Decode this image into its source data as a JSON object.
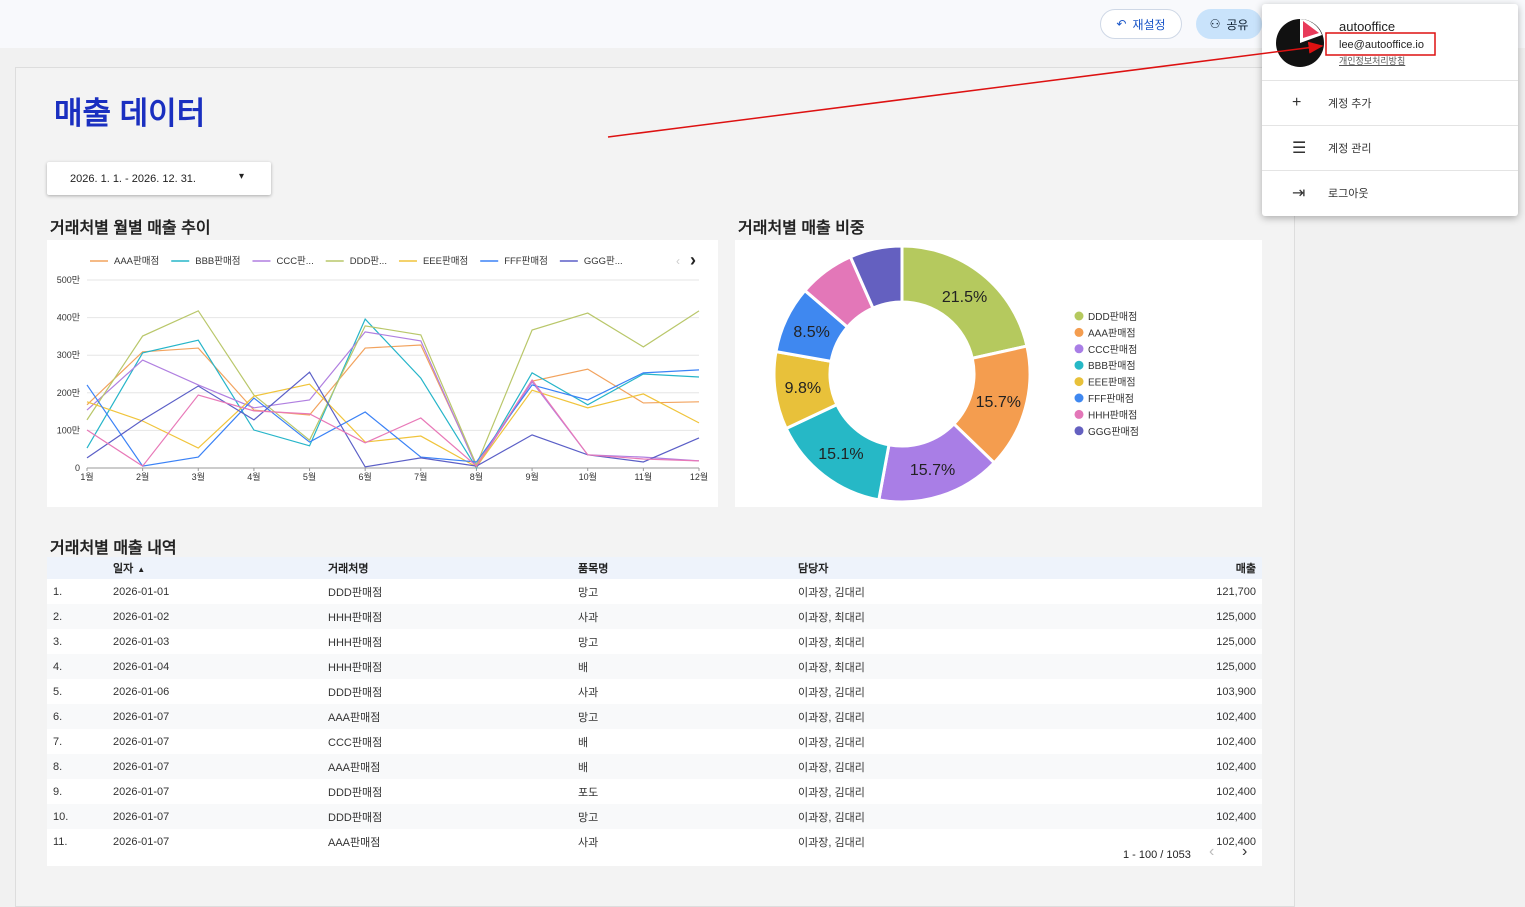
{
  "toolbar": {
    "reset": "재설정",
    "share": "공유"
  },
  "account_menu": {
    "name": "autooffice",
    "email": "lee@autooffice.io",
    "privacy": "개인정보처리방침",
    "items": [
      "계정 추가",
      "계정 관리",
      "로그아웃"
    ]
  },
  "report": {
    "title": "매출 데이터",
    "date_range": "2026. 1. 1. - 2026. 12. 31."
  },
  "chart_data": [
    {
      "type": "line",
      "title": "거래처별 월별 매출 추이",
      "categories": [
        "1월",
        "2월",
        "3월",
        "4월",
        "5월",
        "6월",
        "7월",
        "8월",
        "9월",
        "10월",
        "11월",
        "12월"
      ],
      "ylim": [
        0,
        5000000
      ],
      "yticks": [
        0,
        {
          "value": 1000000,
          "label": "100만"
        },
        {
          "value": 2000000,
          "label": "200만"
        },
        {
          "value": 3000000,
          "label": "300만"
        },
        {
          "value": 4000000,
          "label": "400만"
        },
        {
          "value": 5000000,
          "label": "500만"
        }
      ],
      "grid": true,
      "legend": "top",
      "series": [
        {
          "name": "AAA판매점",
          "color": "#f2a35e",
          "values": [
            1680000,
            3090000,
            3190000,
            1540000,
            1410000,
            3190000,
            3270000,
            80000,
            2310000,
            2630000,
            1730000,
            1760000
          ]
        },
        {
          "name": "BBB판매점",
          "color": "#26b5c9",
          "values": [
            530000,
            3060000,
            3400000,
            1010000,
            590000,
            3960000,
            2390000,
            0,
            2530000,
            1680000,
            2500000,
            2420000
          ]
        },
        {
          "name": "CCC판...",
          "color": "#b07fe0",
          "values": [
            1540000,
            2870000,
            2210000,
            1600000,
            1810000,
            3620000,
            3380000,
            30000,
            2290000,
            350000,
            290000,
            190000
          ]
        },
        {
          "name": "DDD판...",
          "color": "#b9c76a",
          "values": [
            1280000,
            3510000,
            4180000,
            1940000,
            740000,
            3780000,
            3540000,
            80000,
            3670000,
            4120000,
            3220000,
            4180000
          ]
        },
        {
          "name": "EEE판매점",
          "color": "#f0c43b",
          "values": [
            1760000,
            1250000,
            530000,
            1910000,
            2230000,
            690000,
            850000,
            30000,
            2070000,
            1600000,
            1970000,
            1200000
          ]
        },
        {
          "name": "FFF판매점",
          "color": "#3b82f6",
          "values": [
            2210000,
            50000,
            290000,
            1860000,
            690000,
            1490000,
            290000,
            160000,
            2210000,
            1810000,
            2530000,
            2610000
          ]
        },
        {
          "name": "GGG판...",
          "color": "#5b5fc7",
          "values": [
            270000,
            1280000,
            2180000,
            1280000,
            2550000,
            30000,
            270000,
            50000,
            880000,
            350000,
            160000,
            800000
          ]
        },
        {
          "color": "#e879b8",
          "values": [
            1010000,
            50000,
            1940000,
            1520000,
            1440000,
            670000,
            1330000,
            50000,
            2340000,
            350000,
            240000,
            190000
          ]
        }
      ]
    },
    {
      "type": "pie",
      "title": "거래처별 매출 비중",
      "categories": [
        "DDD판매점",
        "AAA판매점",
        "CCC판매점",
        "BBB판매점",
        "EEE판매점",
        "FFF판매점",
        "HHH판매점",
        "GGG판매점"
      ],
      "values": [
        21.5,
        15.7,
        15.7,
        15.1,
        9.8,
        8.5,
        7.1,
        6.6
      ],
      "value_labels": [
        "21.5%",
        "15.7%",
        "15.7%",
        "15.1%",
        "9.8%",
        "8.5%",
        null,
        null
      ],
      "colors": [
        "#b5c95e",
        "#f49d4f",
        "#a97ee6",
        "#26b8c6",
        "#e8c13a",
        "#3f88f0",
        "#e377b8",
        "#6460c0"
      ],
      "legend": "right"
    }
  ],
  "table": {
    "title": "거래처별 매출 내역",
    "columns": [
      "일자",
      "거래처명",
      "품목명",
      "담당자",
      "매출"
    ],
    "rows": [
      [
        "1.",
        "2026-01-01",
        "DDD판매점",
        "망고",
        "이과장, 김대리",
        "121,700"
      ],
      [
        "2.",
        "2026-01-02",
        "HHH판매점",
        "사과",
        "이과장, 최대리",
        "125,000"
      ],
      [
        "3.",
        "2026-01-03",
        "HHH판매점",
        "망고",
        "이과장, 최대리",
        "125,000"
      ],
      [
        "4.",
        "2026-01-04",
        "HHH판매점",
        "배",
        "이과장, 최대리",
        "125,000"
      ],
      [
        "5.",
        "2026-01-06",
        "DDD판매점",
        "사과",
        "이과장, 김대리",
        "103,900"
      ],
      [
        "6.",
        "2026-01-07",
        "AAA판매점",
        "망고",
        "이과장, 김대리",
        "102,400"
      ],
      [
        "7.",
        "2026-01-07",
        "CCC판매점",
        "배",
        "이과장, 김대리",
        "102,400"
      ],
      [
        "8.",
        "2026-01-07",
        "AAA판매점",
        "배",
        "이과장, 김대리",
        "102,400"
      ],
      [
        "9.",
        "2026-01-07",
        "DDD판매점",
        "포도",
        "이과장, 김대리",
        "102,400"
      ],
      [
        "10.",
        "2026-01-07",
        "DDD판매점",
        "망고",
        "이과장, 김대리",
        "102,400"
      ],
      [
        "11.",
        "2026-01-07",
        "AAA판매점",
        "사과",
        "이과장, 김대리",
        "102,400"
      ]
    ],
    "pagination": "1 - 100 / 1053"
  }
}
